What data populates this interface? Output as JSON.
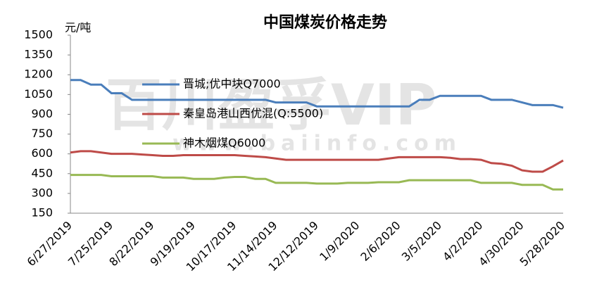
{
  "chart_data": {
    "type": "line",
    "title": "中国煤炭价格走势",
    "y_unit": "元/吨",
    "watermark": {
      "brand": "百川盈孚VIP",
      "url": "www.baiinfo.com"
    },
    "categories": [
      "6/27/2019",
      null,
      null,
      null,
      "7/25/2019",
      null,
      null,
      null,
      "8/22/2019",
      null,
      null,
      null,
      "9/19/2019",
      null,
      null,
      null,
      "10/17/2019",
      null,
      null,
      null,
      "11/14/2019",
      null,
      null,
      null,
      "12/12/2019",
      null,
      null,
      null,
      "1/9/2020",
      null,
      null,
      null,
      "2/6/2020",
      null,
      null,
      null,
      "3/5/2020",
      null,
      null,
      null,
      "4/2/2020",
      null,
      null,
      null,
      "4/30/2020",
      null,
      null,
      null,
      "5/28/2020"
    ],
    "ylim": [
      150,
      1500
    ],
    "yticks": [
      150,
      300,
      450,
      600,
      750,
      900,
      1050,
      1200,
      1350,
      1500
    ],
    "grid": false,
    "series": [
      {
        "name": "晋城;优中块Q7000",
        "color": "#4a7ebb",
        "values": [
          1160,
          1160,
          1125,
          1125,
          1060,
          1060,
          1010,
          1010,
          1010,
          1010,
          1010,
          1010,
          1010,
          1010,
          1010,
          1010,
          1010,
          1010,
          1010,
          1010,
          990,
          990,
          990,
          990,
          960,
          960,
          960,
          960,
          960,
          960,
          960,
          960,
          960,
          960,
          1010,
          1010,
          1040,
          1040,
          1040,
          1040,
          1040,
          1010,
          1010,
          1010,
          990,
          970,
          970,
          970,
          950
        ]
      },
      {
        "name": "秦皇岛港山西优混(Q:5500)",
        "color": "#be4b48",
        "values": [
          610,
          620,
          620,
          610,
          600,
          600,
          600,
          595,
          590,
          585,
          585,
          590,
          590,
          590,
          590,
          590,
          590,
          585,
          580,
          575,
          565,
          555,
          555,
          555,
          555,
          555,
          555,
          555,
          555,
          555,
          555,
          565,
          575,
          575,
          575,
          575,
          575,
          570,
          560,
          560,
          555,
          530,
          525,
          510,
          475,
          465,
          465,
          505,
          550
        ]
      },
      {
        "name": "神木烟煤Q6000",
        "color": "#98b954",
        "values": [
          440,
          440,
          440,
          440,
          430,
          430,
          430,
          430,
          430,
          420,
          420,
          420,
          410,
          410,
          410,
          420,
          425,
          425,
          410,
          410,
          380,
          380,
          380,
          380,
          375,
          375,
          375,
          380,
          380,
          380,
          385,
          385,
          385,
          400,
          400,
          400,
          400,
          400,
          400,
          400,
          380,
          380,
          380,
          380,
          365,
          365,
          365,
          330,
          330
        ]
      }
    ]
  }
}
